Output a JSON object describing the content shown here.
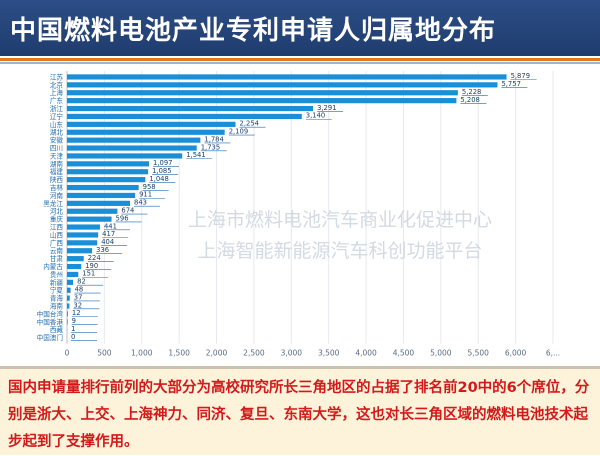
{
  "title": "中国燃料电池产业专利申请人归属地分布",
  "watermark": {
    "line1": "上海市燃料电池汽车商业化促进中心",
    "line2": "上海智能新能源汽车科创功能平台"
  },
  "note": "国内申请量排行前列的大部分为高校研究所长三角地区的占据了排名前20中的6个席位，分别是浙大、上交、上海神力、同济、复旦、东南大学，这也对长三角区域的燃料电池技术起步起到了支撑作用。",
  "colors": {
    "bar": "#1a8fd8",
    "label": "#1f6bb0",
    "axis_text": "#5a6b80",
    "grid": "#e6e9ee",
    "title_bg": "#1f3c6e"
  },
  "chart_data": {
    "type": "bar",
    "orientation": "horizontal",
    "categories": [
      "江苏",
      "北京",
      "上海",
      "广东",
      "浙江",
      "辽宁",
      "山东",
      "湖北",
      "安徽",
      "四川",
      "天津",
      "湖南",
      "福建",
      "陕西",
      "吉林",
      "河南",
      "黑龙江",
      "河北",
      "重庆",
      "江西",
      "山西",
      "广西",
      "云南",
      "甘肃",
      "内蒙古",
      "贵州",
      "新疆",
      "宁夏",
      "青海",
      "海南",
      "中国台湾",
      "中国香港",
      "西藏",
      "中国澳门"
    ],
    "values": [
      5879,
      5757,
      5228,
      5208,
      3291,
      3140,
      2254,
      2109,
      1784,
      1735,
      1541,
      1097,
      1085,
      1048,
      958,
      911,
      843,
      674,
      596,
      441,
      417,
      404,
      336,
      224,
      190,
      151,
      82,
      48,
      37,
      32,
      12,
      9,
      1,
      0
    ],
    "value_labels": [
      "5,879",
      "5,757",
      "5,228",
      "5,208",
      "3,291",
      "3,140",
      "2,254",
      "2,109",
      "1,784",
      "1,735",
      "1,541",
      "1,097",
      "1,085",
      "1,048",
      "958",
      "911",
      "843",
      "674",
      "596",
      "441",
      "417",
      "404",
      "336",
      "224",
      "190",
      "151",
      "82",
      "48",
      "37",
      "32",
      "12",
      "9",
      "1",
      "0"
    ],
    "x_ticks": [
      "0",
      "500",
      "1,000",
      "1,500",
      "2,000",
      "2,500",
      "3,000",
      "3,500",
      "4,000",
      "4,500",
      "5,000",
      "5,500",
      "6,000",
      "6,..."
    ],
    "xlim": [
      0,
      6500
    ],
    "grid": true
  }
}
